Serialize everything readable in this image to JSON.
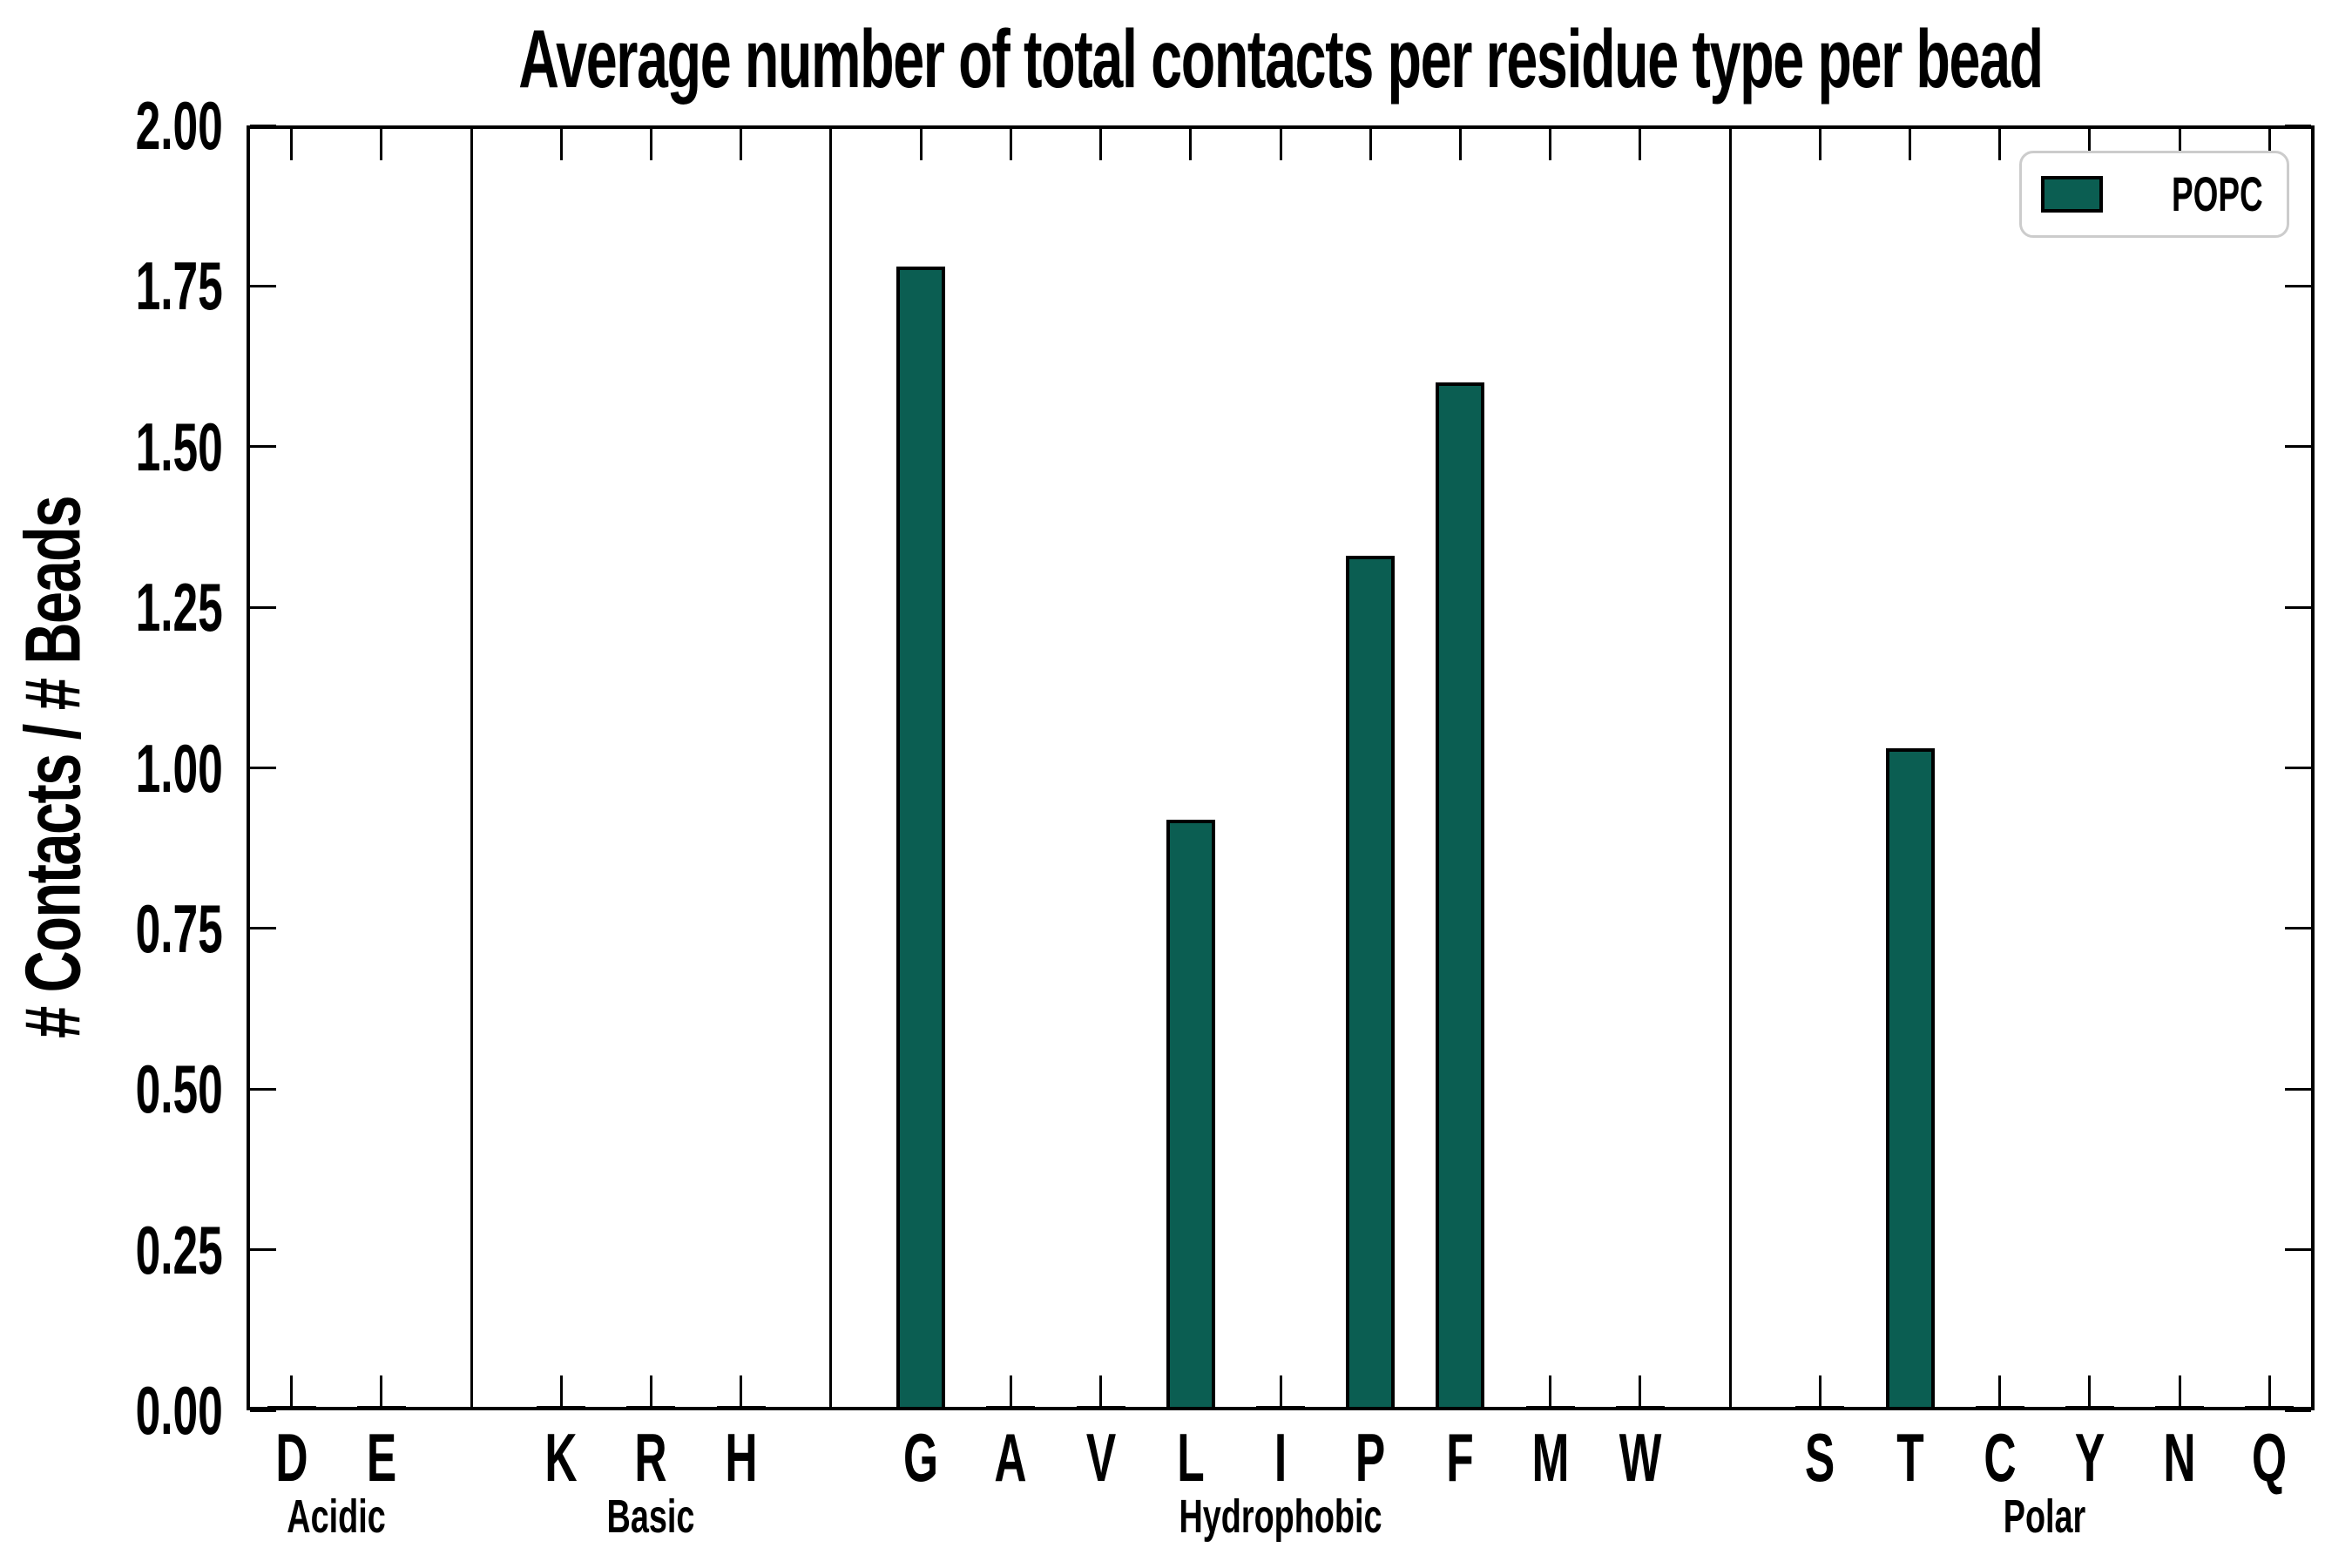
{
  "chart_data": {
    "type": "bar",
    "title": "Average number of total contacts per residue type per bead",
    "ylabel": "# Contacts / # Beads",
    "xlabel": "",
    "ylim": [
      0.0,
      2.0
    ],
    "ytick_step": 0.25,
    "yticks": [
      "0.00",
      "0.25",
      "0.50",
      "0.75",
      "1.00",
      "1.25",
      "1.50",
      "1.75",
      "2.00"
    ],
    "grid": false,
    "legend_position": "upper right",
    "legend": {
      "label": "POPC",
      "color": "#0b5e52",
      "edge_color": "#000000",
      "border_color": "#cccccc"
    },
    "bar_fill_color": "#0b5e52",
    "bar_edge_color": "#000000",
    "groups": [
      {
        "label": "Acidic",
        "categories": [
          "D",
          "E"
        ],
        "values": [
          0,
          0
        ]
      },
      {
        "label": "Basic",
        "categories": [
          "K",
          "R",
          "H"
        ],
        "values": [
          0,
          0,
          0
        ]
      },
      {
        "label": "Hydrophobic",
        "categories": [
          "G",
          "A",
          "V",
          "L",
          "I",
          "P",
          "F",
          "M",
          "W"
        ],
        "values": [
          1.78,
          0,
          0,
          0.92,
          0,
          1.33,
          1.6,
          0,
          0
        ]
      },
      {
        "label": "Polar",
        "categories": [
          "S",
          "T",
          "C",
          "Y",
          "N",
          "Q"
        ],
        "values": [
          0,
          1.03,
          0,
          0,
          0,
          0
        ]
      }
    ]
  }
}
